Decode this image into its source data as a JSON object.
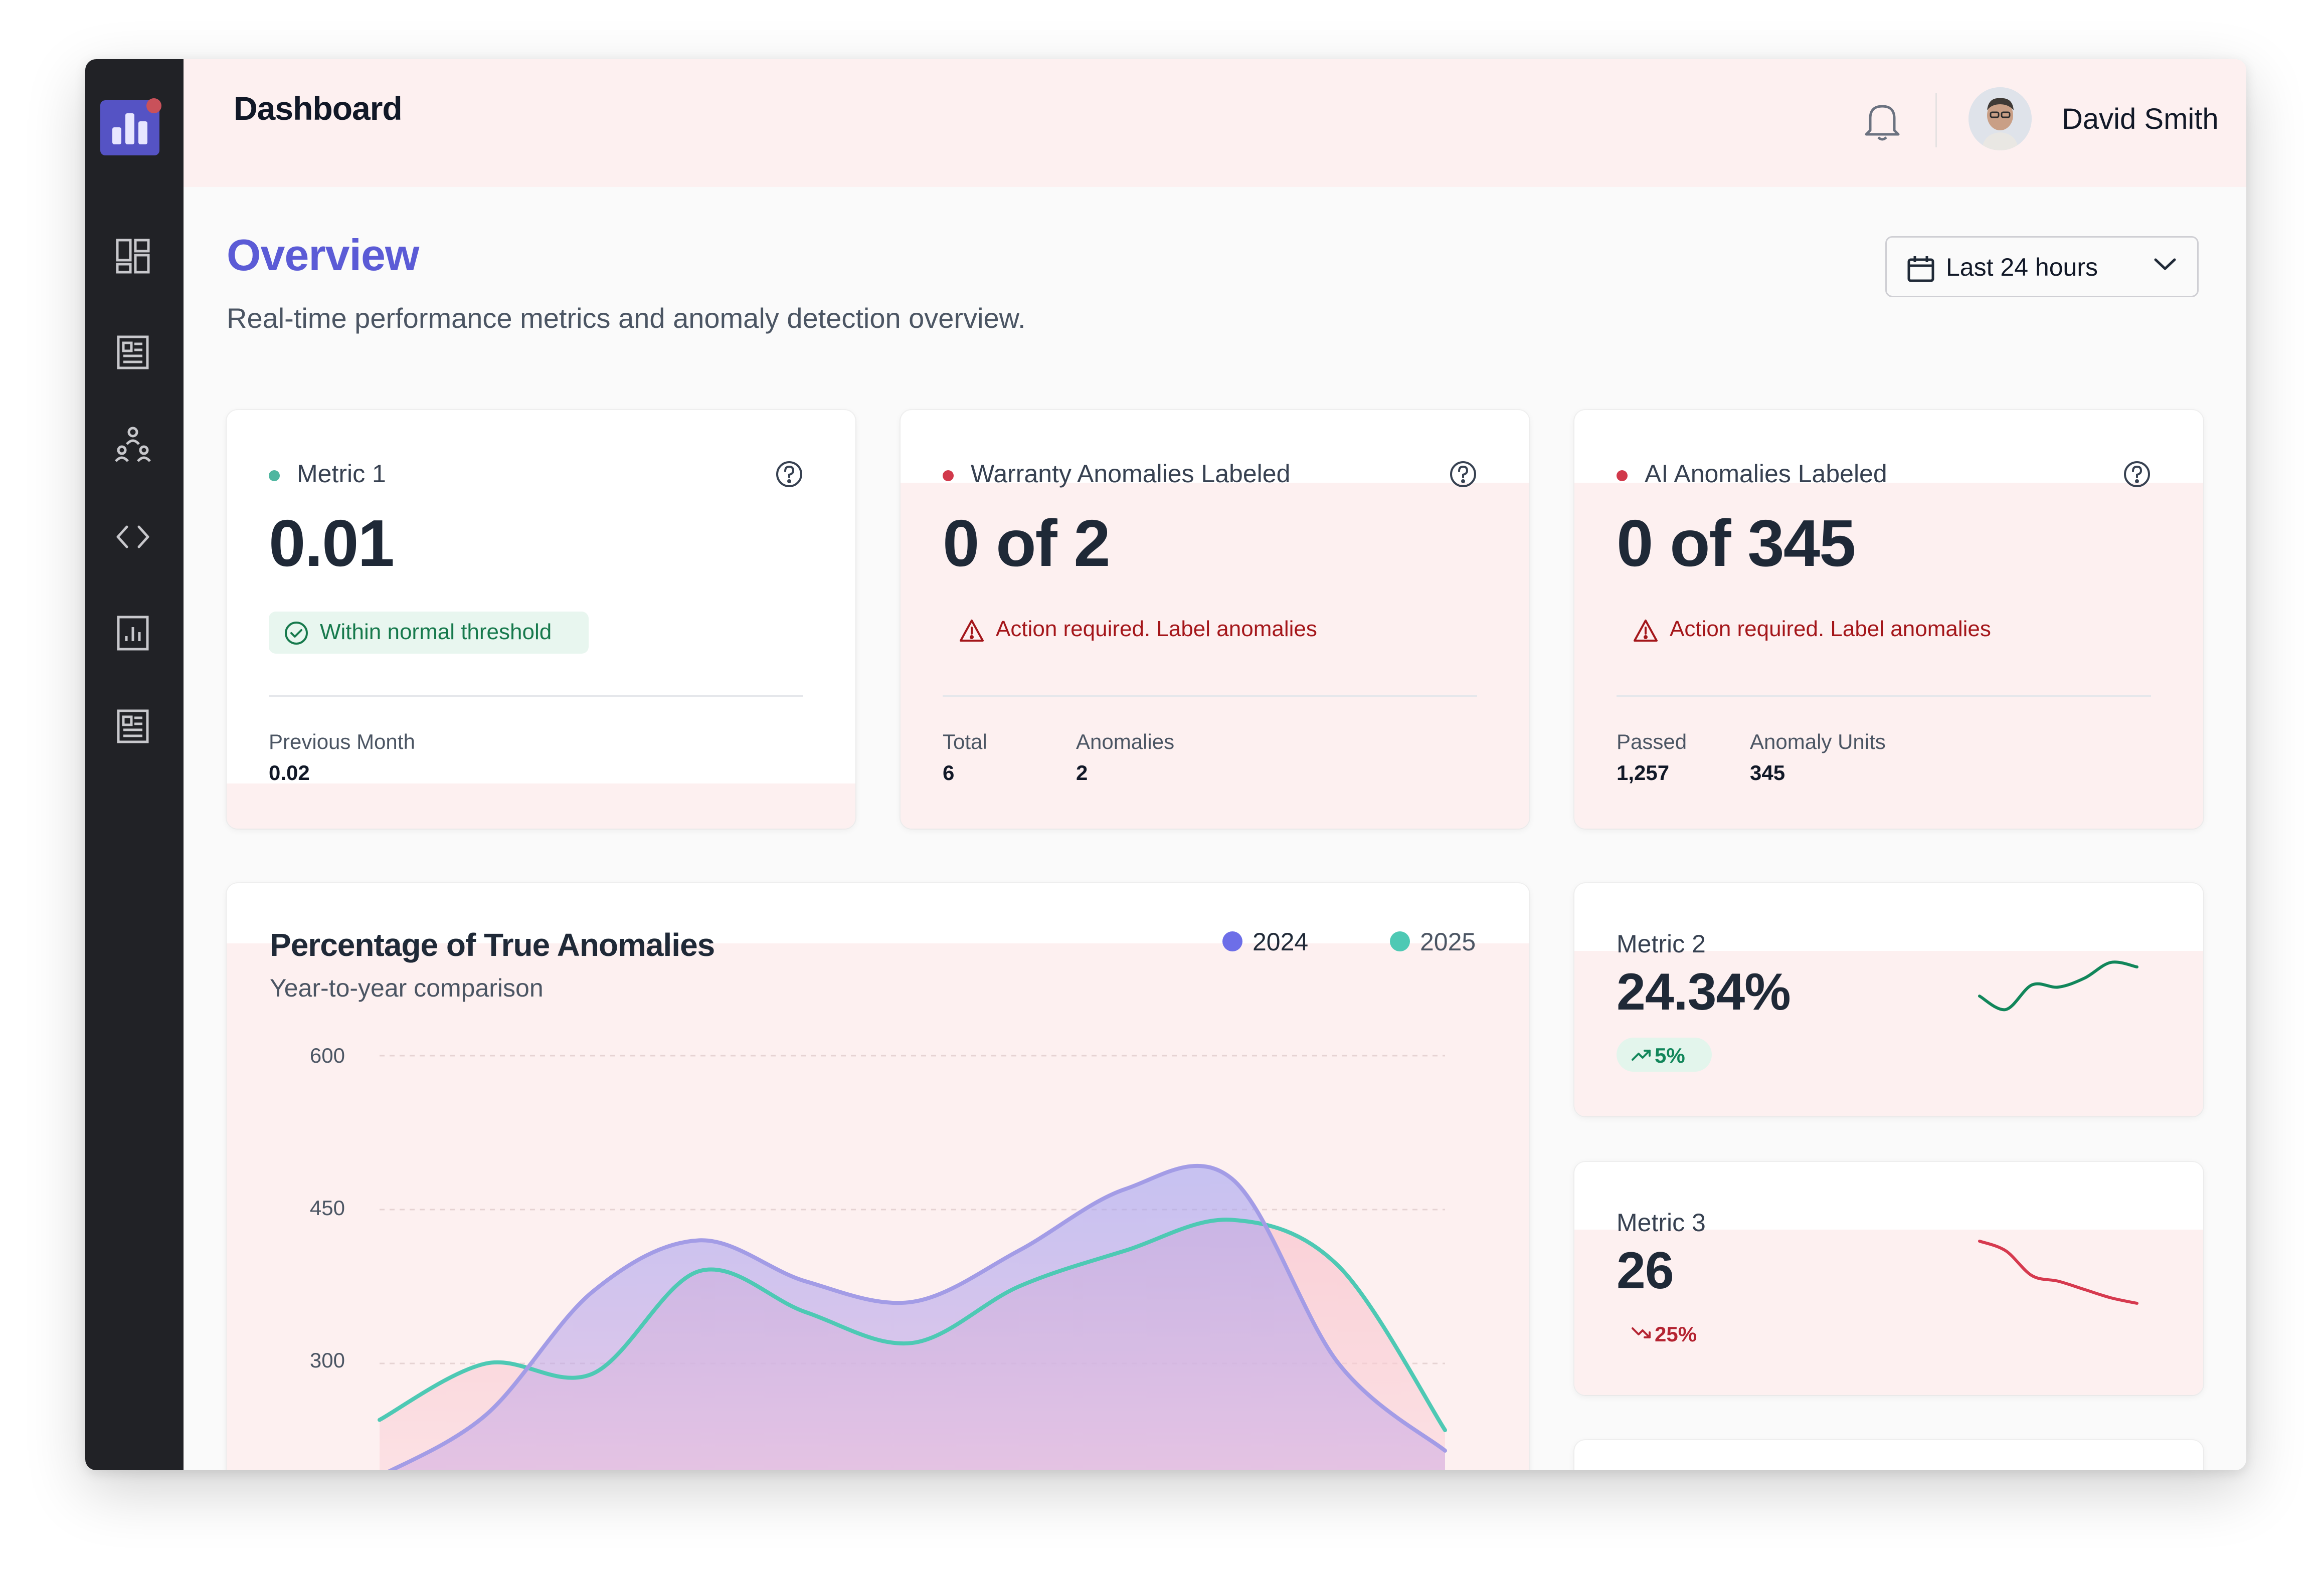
{
  "header": {
    "title": "Dashboard",
    "user_name": "David Smith"
  },
  "overview": {
    "title": "Overview",
    "subtitle": "Real-time performance metrics and anomaly detection overview.",
    "range_label": "Last 24 hours"
  },
  "sidebar": {
    "items": [
      "dashboard-icon",
      "report-icon",
      "hierarchy-icon",
      "code-icon",
      "analytics-icon",
      "document-icon"
    ]
  },
  "cards": {
    "metric1": {
      "title": "Metric 1",
      "value": "0.01",
      "status": "Within normal threshold",
      "prev_label": "Previous Month",
      "prev_value": "0.02"
    },
    "warranty": {
      "title": "Warranty Anomalies Labeled",
      "value": "0 of 2",
      "warning": "Action required. Label anomalies",
      "stat1_label": "Total",
      "stat1_value": "6",
      "stat2_label": "Anomalies",
      "stat2_value": "2"
    },
    "ai": {
      "title": "AI Anomalies Labeled",
      "value": "0 of 345",
      "warning": "Action required. Label anomalies",
      "stat1_label": "Passed",
      "stat1_value": "1,257",
      "stat2_label": "Anomaly Units",
      "stat2_value": "345"
    },
    "metric2": {
      "title": "Metric 2",
      "value": "24.34%",
      "delta": "5%"
    },
    "metric3": {
      "title": "Metric 3",
      "value": "26",
      "delta": "25%"
    }
  },
  "colors": {
    "accent": "#5b5bd6",
    "series_2024": "#6d6ee8",
    "series_2025": "#4ec9b4",
    "positive": "#11865a",
    "negative": "#c9394a",
    "tint": "#fdf0f0",
    "sidebar": "#212226"
  },
  "chart_data": {
    "type": "area",
    "title": "Percentage of True Anomalies",
    "subtitle": "Year-to-year comparison",
    "y_ticks": [
      "600",
      "450",
      "300"
    ],
    "ylim": [
      190,
      600
    ],
    "grid": true,
    "legend_position": "top-right",
    "x": [
      0,
      1,
      2,
      3,
      4,
      5,
      6,
      7,
      8,
      9,
      10
    ],
    "series": [
      {
        "name": "2024",
        "color": "#6d6ee8",
        "values": [
          190,
          250,
          370,
          420,
          380,
          360,
          410,
          470,
          480,
          300,
          215
        ]
      },
      {
        "name": "2025",
        "color": "#4ec9b4",
        "values": [
          245,
          300,
          290,
          390,
          350,
          320,
          375,
          410,
          440,
          395,
          235
        ]
      }
    ]
  },
  "sparklines": {
    "metric2": {
      "values": [
        60,
        48,
        70,
        68,
        76,
        90,
        86
      ]
    },
    "metric3": {
      "values": [
        95,
        88,
        70,
        66,
        60,
        54,
        50
      ]
    }
  }
}
